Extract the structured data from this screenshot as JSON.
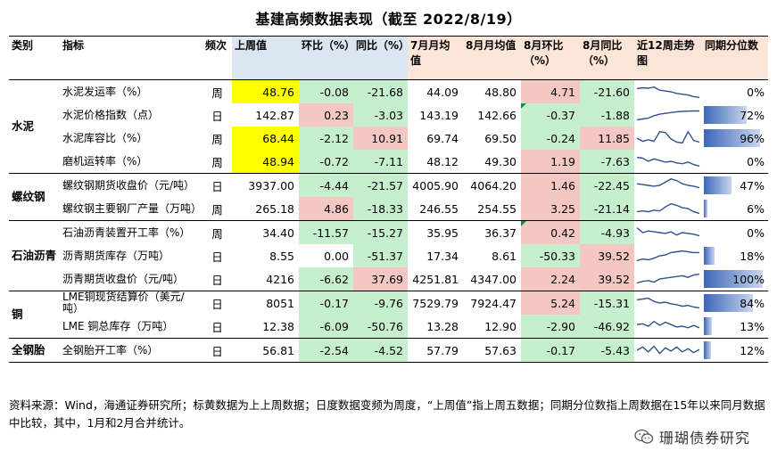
{
  "title": "基建高频数据表现（截至 2022/8/19）",
  "headers": [
    "类别",
    "指标",
    "频次",
    "上周值",
    "环比（%）",
    "同比（%）",
    "7月月均值",
    "8月月均值",
    "8月环比（%）",
    "8月同比（%）",
    "近12周走势图",
    "同期分位数"
  ],
  "groups": [
    {
      "category": "水泥",
      "rows": [
        {
          "indicator": "水泥发运率（%）",
          "freq": "周",
          "last": "48.76",
          "wow": "-0.08",
          "yoy": "-21.68",
          "jul": "44.09",
          "aug": "48.80",
          "aug_mom": "4.71",
          "aug_yoy": "-21.60",
          "pct": "0%",
          "pct_value": 0
        },
        {
          "indicator": "水泥价格指数（点）",
          "freq": "日",
          "last": "142.87",
          "wow": "0.23",
          "yoy": "-3.03",
          "jul": "143.19",
          "aug": "142.66",
          "aug_mom": "-0.37",
          "aug_yoy": "-1.88",
          "pct": "72%",
          "pct_value": 0.72
        },
        {
          "indicator": "水泥库容比（%）",
          "freq": "周",
          "last": "68.44",
          "wow": "-2.12",
          "yoy": "10.91",
          "jul": "69.74",
          "aug": "69.50",
          "aug_mom": "-0.24",
          "aug_yoy": "11.85",
          "pct": "96%",
          "pct_value": 0.96
        },
        {
          "indicator": "磨机运转率（%）",
          "freq": "周",
          "last": "48.94",
          "wow": "-0.72",
          "yoy": "-7.11",
          "jul": "48.12",
          "aug": "49.30",
          "aug_mom": "1.19",
          "aug_yoy": "-7.63",
          "pct": "0%",
          "pct_value": 0
        }
      ]
    },
    {
      "category": "螺纹钢",
      "rows": [
        {
          "indicator": "螺纹钢期货收盘价（元/吨）",
          "freq": "日",
          "last": "3937.00",
          "wow": "-4.44",
          "yoy": "-21.57",
          "jul": "4005.90",
          "aug": "4064.20",
          "aug_mom": "1.46",
          "aug_yoy": "-22.45",
          "pct": "47%",
          "pct_value": 0.47
        },
        {
          "indicator": "螺纹钢主要钢厂产量（万吨）",
          "freq": "周",
          "last": "265.18",
          "wow": "4.86",
          "yoy": "-18.33",
          "jul": "246.55",
          "aug": "254.55",
          "aug_mom": "3.25",
          "aug_yoy": "-21.14",
          "pct": "6%",
          "pct_value": 0.06
        }
      ]
    },
    {
      "category": "石油沥青",
      "rows": [
        {
          "indicator": "石油沥青装置开工率（%）",
          "freq": "周",
          "last": "34.40",
          "wow": "-11.57",
          "yoy": "-15.27",
          "jul": "35.95",
          "aug": "36.37",
          "aug_mom": "0.42",
          "aug_yoy": "-4.93",
          "pct": "0%",
          "pct_value": 0
        },
        {
          "indicator": "沥青期货库存（万吨）",
          "freq": "日",
          "last": "8.55",
          "wow": "0.00",
          "yoy": "-51.37",
          "jul": "17.34",
          "aug": "8.61",
          "aug_mom": "-50.33",
          "aug_yoy": "39.52",
          "pct": "18%",
          "pct_value": 0.18
        },
        {
          "indicator": "沥青期货收盘价（元/吨）",
          "freq": "日",
          "last": "4216",
          "wow": "-6.62",
          "yoy": "37.69",
          "jul": "4251.81",
          "aug": "4347.00",
          "aug_mom": "2.24",
          "aug_yoy": "39.52",
          "pct": "100%",
          "pct_value": 1.0
        }
      ]
    },
    {
      "category": "铜",
      "rows": [
        {
          "indicator": "LME铜现货结算价（美元/吨）",
          "freq": "日",
          "last": "8051",
          "wow": "-0.17",
          "yoy": "-9.76",
          "jul": "7529.79",
          "aug": "7924.47",
          "aug_mom": "5.24",
          "aug_yoy": "-15.31",
          "pct": "84%",
          "pct_value": 0.84
        },
        {
          "indicator": "LME 铜总库存（万吨）",
          "freq": "日",
          "last": "12.38",
          "wow": "-6.09",
          "yoy": "-50.76",
          "jul": "13.28",
          "aug": "12.90",
          "aug_mom": "-2.90",
          "aug_yoy": "-46.92",
          "pct": "13%",
          "pct_value": 0.13
        }
      ]
    },
    {
      "category": "全钢胎",
      "rows": [
        {
          "indicator": "全钢胎开工率（%）",
          "freq": "日",
          "last": "56.81",
          "wow": "-2.54",
          "yoy": "-4.52",
          "jul": "57.79",
          "aug": "57.63",
          "aug_mom": "-0.17",
          "aug_yoy": "-5.43",
          "pct": "12%",
          "pct_value": 0.12
        }
      ]
    }
  ],
  "note": "资料来源：Wind，海通证券研究所；标黄数据为上上周数据；日度数据变频为周度，“上周值”指上周五数据；同期分位数指上周数据在15年以来同月数据中比较，其中，1月和2月合并统计。",
  "brand": "珊瑚债券研究",
  "colors": {
    "highlight_yellow": "#ffff00",
    "negative_red": "#f4c7c3",
    "positive_green": "#c6efce",
    "header_blue": "#dce6f1",
    "header_orange": "#fbe5d6",
    "bar_blue": "#3b67b8"
  },
  "icons": {
    "brand": "wechat-icon"
  }
}
